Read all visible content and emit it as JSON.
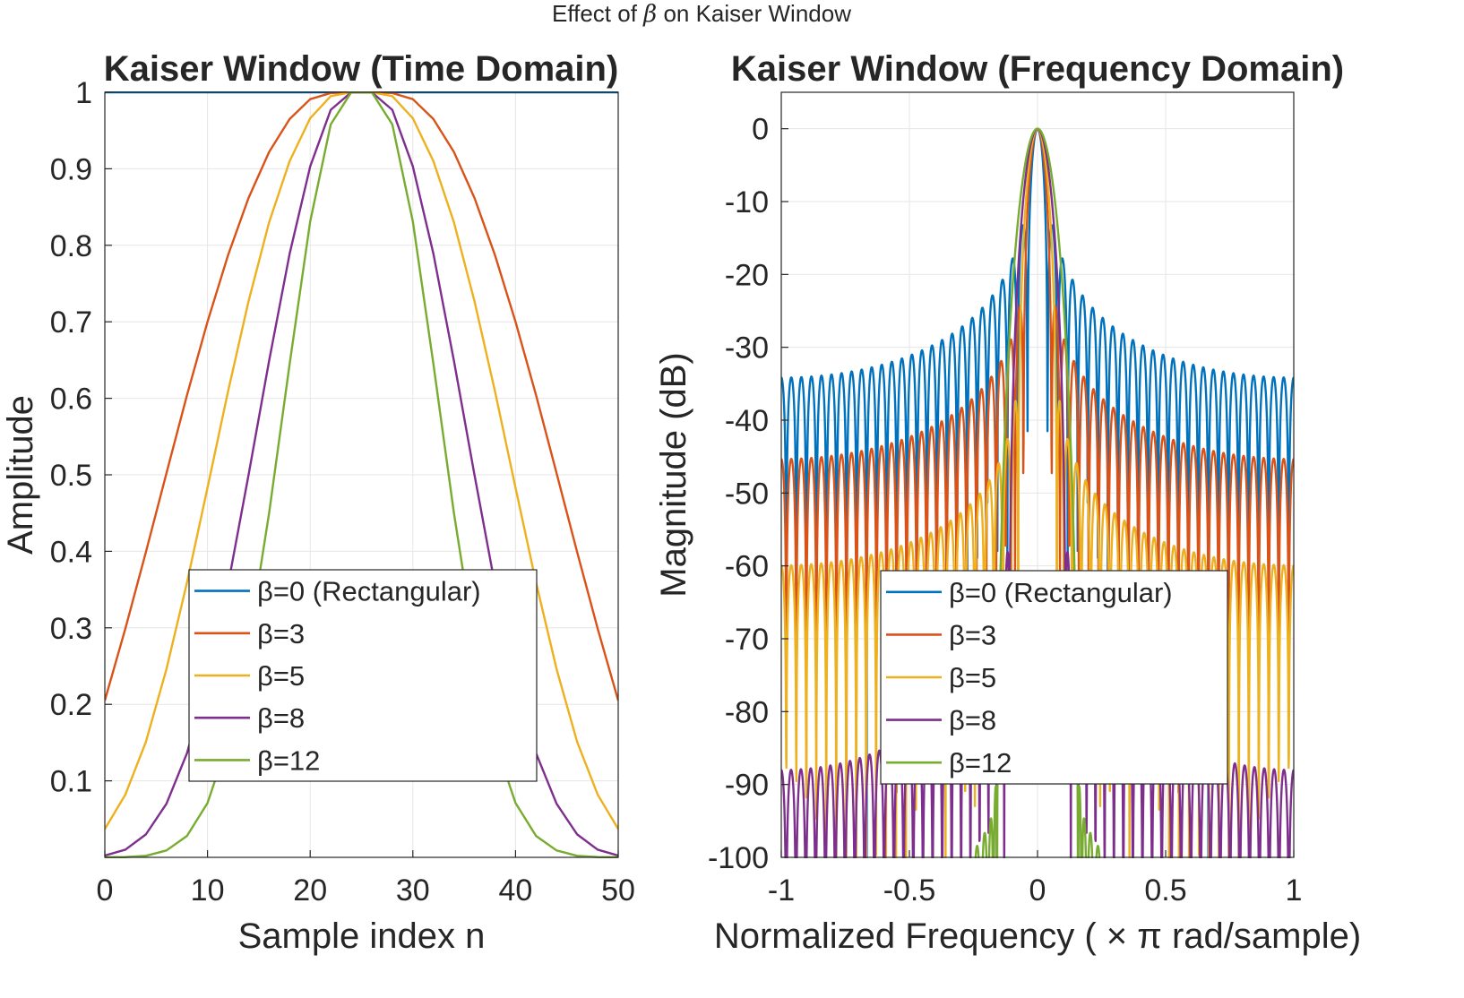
{
  "figure": {
    "suptitle_prefix": "Effect of",
    "suptitle_symbol": "β",
    "suptitle_suffix": "on Kaiser Window"
  },
  "chart_data": [
    {
      "type": "line",
      "title": "Kaiser Window (Time Domain)",
      "xlabel": "Sample index n",
      "ylabel": "Amplitude",
      "xlim": [
        0,
        50
      ],
      "ylim": [
        0,
        1
      ],
      "xticks": [
        0,
        10,
        20,
        30,
        40,
        50
      ],
      "xtick_labels": [
        "0",
        "10",
        "20",
        "30",
        "40",
        "50"
      ],
      "yticks": [
        0.1,
        0.2,
        0.3,
        0.4,
        0.5,
        0.6,
        0.7,
        0.8,
        0.9,
        1
      ],
      "ytick_labels": [
        "0.1",
        "0.2",
        "0.3",
        "0.4",
        "0.5",
        "0.6",
        "0.7",
        "0.8",
        "0.9",
        "1"
      ],
      "grid": true,
      "legend_position": "lower-center",
      "x": [
        0,
        2,
        4,
        6,
        8,
        10,
        12,
        14,
        16,
        18,
        20,
        22,
        24,
        25,
        26,
        28,
        30,
        32,
        34,
        36,
        38,
        40,
        42,
        44,
        46,
        48,
        50
      ],
      "series": [
        {
          "name": "β=0  (Rectangular)",
          "color": "#0072BD",
          "values": [
            1,
            1,
            1,
            1,
            1,
            1,
            1,
            1,
            1,
            1,
            1,
            1,
            1,
            1,
            1,
            1,
            1,
            1,
            1,
            1,
            1,
            1,
            1,
            1,
            1,
            1,
            1
          ]
        },
        {
          "name": "β=3",
          "color": "#D95319",
          "values": [
            0.205,
            0.299,
            0.399,
            0.502,
            0.604,
            0.7,
            0.787,
            0.862,
            0.922,
            0.965,
            0.991,
            0.999,
            1.0,
            1.0,
            1.0,
            0.999,
            0.991,
            0.965,
            0.922,
            0.862,
            0.787,
            0.7,
            0.604,
            0.502,
            0.399,
            0.299,
            0.205
          ]
        },
        {
          "name": "β=5",
          "color": "#EDB120",
          "values": [
            0.037,
            0.082,
            0.151,
            0.246,
            0.359,
            0.483,
            0.609,
            0.727,
            0.83,
            0.91,
            0.966,
            0.995,
            1.0,
            1.0,
            1.0,
            0.995,
            0.966,
            0.91,
            0.83,
            0.727,
            0.609,
            0.483,
            0.359,
            0.246,
            0.151,
            0.082,
            0.037
          ]
        },
        {
          "name": "β=8",
          "color": "#7E2F8E",
          "values": [
            0.0024,
            0.01,
            0.03,
            0.07,
            0.136,
            0.232,
            0.356,
            0.5,
            0.649,
            0.789,
            0.903,
            0.977,
            1.0,
            1.0,
            1.0,
            0.977,
            0.903,
            0.789,
            0.649,
            0.5,
            0.356,
            0.232,
            0.136,
            0.07,
            0.03,
            0.01,
            0.0024
          ]
        },
        {
          "name": "β=12",
          "color": "#77AC30",
          "values": [
            1e-05,
            0.0003,
            0.002,
            0.009,
            0.028,
            0.071,
            0.151,
            0.279,
            0.45,
            0.645,
            0.831,
            0.958,
            1.0,
            1.0,
            1.0,
            0.958,
            0.831,
            0.645,
            0.45,
            0.279,
            0.151,
            0.071,
            0.028,
            0.009,
            0.002,
            0.0003,
            1e-05
          ]
        }
      ]
    },
    {
      "type": "line",
      "title": "Kaiser Window (Frequency Domain)",
      "xlabel": "Normalized  Frequency  ( × π  rad/sample)",
      "ylabel": "Magnitude (dB)",
      "xlim": [
        -1,
        1
      ],
      "ylim": [
        -100,
        5
      ],
      "xticks": [
        -1,
        -0.5,
        0,
        0.5,
        1
      ],
      "xtick_labels": [
        "-1",
        "-0.5",
        "0",
        "0.5",
        "1"
      ],
      "yticks": [
        0,
        -10,
        -20,
        -30,
        -40,
        -50,
        -60,
        -70,
        -80,
        -90,
        -100
      ],
      "ytick_labels": [
        "0",
        "-10",
        "-20",
        "-30",
        "-40",
        "-50",
        "-60",
        "-70",
        "-80",
        "-90",
        "-100"
      ],
      "grid": true,
      "legend_position": "lower-center",
      "window_length": 51,
      "series": [
        {
          "name": "β=0  (Rectangular)",
          "color": "#0072BD",
          "beta": 0,
          "peak_sidelobe_db": -13,
          "edge_sidelobe_db": -34
        },
        {
          "name": "β=3",
          "color": "#D95319",
          "beta": 3,
          "peak_sidelobe_db": -29,
          "edge_sidelobe_db": -45
        },
        {
          "name": "β=5",
          "color": "#EDB120",
          "beta": 5,
          "peak_sidelobe_db": -37,
          "edge_sidelobe_db": -60
        },
        {
          "name": "β=8",
          "color": "#7E2F8E",
          "beta": 8,
          "peak_sidelobe_db": -59,
          "edge_sidelobe_db": -88
        },
        {
          "name": "β=12",
          "color": "#77AC30",
          "beta": 12,
          "peak_sidelobe_db": -90,
          "edge_sidelobe_db": -100
        }
      ]
    }
  ]
}
